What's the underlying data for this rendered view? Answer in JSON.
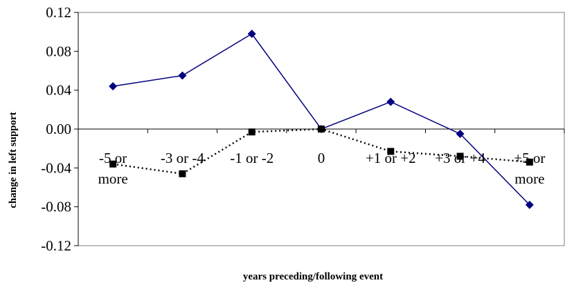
{
  "chart_data": {
    "type": "line",
    "title": "",
    "xlabel": "years preceding/following event",
    "ylabel": "change in left support",
    "ylim": [
      -0.12,
      0.12
    ],
    "yticks": [
      "0.12",
      "0.08",
      "0.04",
      "0.00",
      "-0.04",
      "-0.08",
      "-0.12"
    ],
    "categories": [
      [
        "-5 or",
        "more"
      ],
      [
        "-3 or -4"
      ],
      [
        "-1 or -2"
      ],
      [
        "0"
      ],
      [
        "+1 or +2"
      ],
      [
        "+3 or +4"
      ],
      [
        "+5 or",
        "more"
      ]
    ],
    "grid": false,
    "legend": "none",
    "series": [
      {
        "values": [
          0.044,
          0.055,
          0.098,
          0.0,
          0.028,
          -0.005,
          -0.078
        ],
        "color": "#00007f",
        "marker": "diamond",
        "line_style": "solid"
      },
      {
        "values": [
          -0.036,
          -0.046,
          -0.003,
          0.0,
          -0.023,
          -0.028,
          -0.034
        ],
        "color": "#000000",
        "marker": "square",
        "line_style": "dotted"
      }
    ]
  }
}
